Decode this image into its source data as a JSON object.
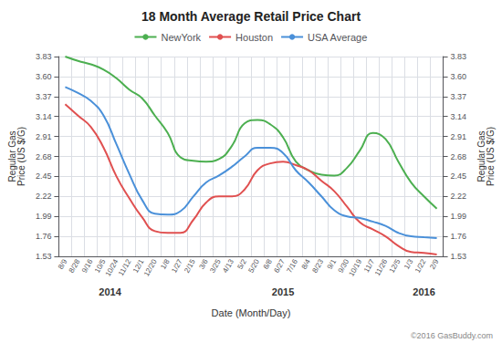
{
  "chart_data": {
    "type": "line",
    "title": "18 Month Average Retail Price Chart",
    "x_label": "Date (Month/Day)",
    "y_label": "Regular Gas\nPrice (US $/G)",
    "y2_label": "Regular Gas\nPrice (US $/G)",
    "categories": [
      "8/9",
      "8/28",
      "9/16",
      "10/5",
      "10/24",
      "11/12",
      "12/1",
      "12/20",
      "1/8",
      "1/27",
      "2/15",
      "3/6",
      "3/25",
      "4/13",
      "5/2",
      "5/20",
      "6/8",
      "6/27",
      "7/16",
      "8/4",
      "8/23",
      "9/1",
      "9/30",
      "10/19",
      "11/7",
      "11/26",
      "12/5",
      "1/3",
      "1/22",
      "2/9"
    ],
    "series": [
      {
        "name": "NewYork",
        "color": "#4caf50",
        "values": [
          3.83,
          3.78,
          3.74,
          3.68,
          3.58,
          3.45,
          3.35,
          3.15,
          2.95,
          2.67,
          2.63,
          2.62,
          2.65,
          2.8,
          3.06,
          3.1,
          3.05,
          2.9,
          2.62,
          2.52,
          2.47,
          2.46,
          2.55,
          2.75,
          2.95,
          2.88,
          2.62,
          2.38,
          2.22,
          2.08
        ]
      },
      {
        "name": "Houston",
        "color": "#e05050",
        "values": [
          3.28,
          3.15,
          3.02,
          2.78,
          2.45,
          2.2,
          1.98,
          1.82,
          1.8,
          1.8,
          1.95,
          2.15,
          2.22,
          2.22,
          2.3,
          2.52,
          2.6,
          2.62,
          2.58,
          2.52,
          2.4,
          2.28,
          2.1,
          1.92,
          1.84,
          1.76,
          1.65,
          1.58,
          1.57,
          1.55
        ]
      },
      {
        "name": "USA Average",
        "color": "#4a90d9",
        "values": [
          3.48,
          3.41,
          3.32,
          3.15,
          2.82,
          2.48,
          2.18,
          2.02,
          2.01,
          2.05,
          2.22,
          2.38,
          2.46,
          2.56,
          2.68,
          2.78,
          2.78,
          2.72,
          2.52,
          2.38,
          2.22,
          2.06,
          1.99,
          1.97,
          1.93,
          1.88,
          1.8,
          1.76,
          1.75,
          1.74
        ]
      }
    ],
    "ylim": [
      1.53,
      3.83
    ],
    "yticks": [
      1.53,
      1.76,
      1.99,
      2.22,
      2.45,
      2.68,
      2.91,
      3.14,
      3.37,
      {
        "value": 3.6,
        "label": "3.60"
      },
      3.83
    ],
    "y2lim": [
      1.53,
      3.83
    ],
    "y2ticks": [
      1.53,
      1.76,
      1.99,
      2.22,
      2.45,
      2.68,
      2.91,
      3.14,
      3.37,
      {
        "value": 3.6,
        "label": "3.60"
      },
      3.83
    ],
    "grid": true,
    "legend": "top",
    "annotations": [
      "2014",
      "2015",
      "2016",
      "©2016 GasBuddy.com"
    ]
  }
}
